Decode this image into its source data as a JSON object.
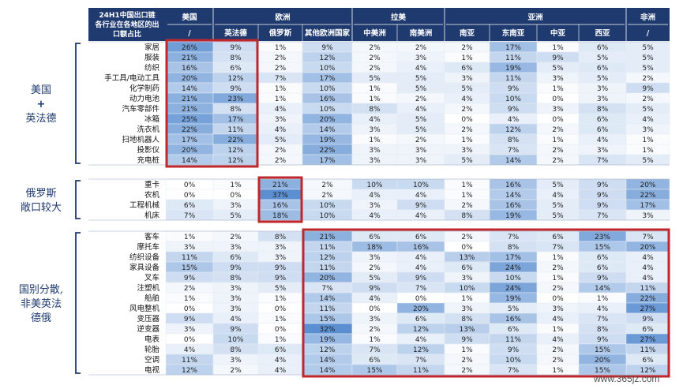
{
  "chart_data": {
    "type": "heatmap",
    "title": "24H1中国出口链各行业在各地区的出口额占比",
    "regions": [
      {
        "name": "美国",
        "subs": [
          "/"
        ]
      },
      {
        "name": "欧洲",
        "subs": [
          "英法德",
          "俄罗斯",
          "其他欧洲国家"
        ]
      },
      {
        "name": "拉美",
        "subs": [
          "中美洲",
          "南美洲"
        ]
      },
      {
        "name": "亚洲",
        "subs": [
          "南亚",
          "东南亚",
          "中亚",
          "西亚"
        ]
      },
      {
        "name": "非洲",
        "subs": [
          "/"
        ]
      }
    ],
    "groups": [
      {
        "label_lines": [
          "美国",
          "+",
          "英法德"
        ],
        "rows": [
          {
            "name": "家居",
            "values": [
              26,
              9,
              1,
              9,
              2,
              2,
              2,
              17,
              1,
              6,
              5
            ]
          },
          {
            "name": "服装",
            "values": [
              21,
              8,
              2,
              12,
              2,
              3,
              1,
              11,
              9,
              5,
              5
            ]
          },
          {
            "name": "纺织",
            "values": [
              16,
              6,
              2,
              10,
              2,
              4,
              6,
              19,
              5,
              6,
              5
            ]
          },
          {
            "name": "手工具/电动工具",
            "values": [
              20,
              12,
              7,
              17,
              5,
              5,
              3,
              11,
              3,
              5,
              2
            ]
          },
          {
            "name": "化学制药",
            "values": [
              14,
              9,
              1,
              10,
              1,
              5,
              5,
              9,
              1,
              3,
              9
            ]
          },
          {
            "name": "动力电池",
            "values": [
              21,
              23,
              1,
              16,
              1,
              2,
              4,
              10,
              0,
              3,
              2
            ]
          },
          {
            "name": "汽车零部件",
            "values": [
              21,
              8,
              4,
              10,
              8,
              4,
              2,
              9,
              3,
              8,
              5
            ]
          },
          {
            "name": "冰箱",
            "values": [
              25,
              17,
              3,
              20,
              4,
              5,
              0,
              4,
              0,
              6,
              4
            ]
          },
          {
            "name": "洗衣机",
            "values": [
              22,
              11,
              4,
              14,
              3,
              5,
              2,
              12,
              2,
              6,
              3
            ]
          },
          {
            "name": "扫地机器人",
            "values": [
              17,
              22,
              5,
              19,
              1,
              2,
              1,
              8,
              1,
              4,
              1
            ]
          },
          {
            "name": "投影仪",
            "values": [
              20,
              12,
              2,
              22,
              3,
              3,
              3,
              7,
              2,
              3,
              1
            ]
          },
          {
            "name": "充电桩",
            "values": [
              14,
              12,
              2,
              17,
              3,
              3,
              5,
              14,
              2,
              7,
              5
            ]
          }
        ]
      },
      {
        "label_lines": [
          "俄罗斯",
          "敞口较大"
        ],
        "rows": [
          {
            "name": "重卡",
            "values": [
              0,
              1,
              21,
              2,
              10,
              10,
              1,
              16,
              5,
              9,
              20
            ]
          },
          {
            "name": "农机",
            "values": [
              0,
              0,
              37,
              2,
              4,
              4,
              1,
              14,
              4,
              9,
              22
            ]
          },
          {
            "name": "工程机械",
            "values": [
              6,
              3,
              16,
              10,
              3,
              9,
              2,
              16,
              5,
              9,
              17
            ]
          },
          {
            "name": "机床",
            "values": [
              7,
              5,
              18,
              10,
              4,
              4,
              8,
              19,
              5,
              7,
              3
            ]
          }
        ]
      },
      {
        "label_lines": [
          "国别分散,",
          "非美英法",
          "德俄"
        ],
        "rows": [
          {
            "name": "客车",
            "values": [
              1,
              2,
              8,
              21,
              6,
              6,
              2,
              7,
              6,
              23,
              7
            ]
          },
          {
            "name": "摩托车",
            "values": [
              3,
              3,
              3,
              11,
              18,
              16,
              0,
              8,
              7,
              15,
              20
            ]
          },
          {
            "name": "纺织设备",
            "values": [
              11,
              6,
              3,
              12,
              3,
              4,
              13,
              17,
              1,
              6,
              4
            ]
          },
          {
            "name": "家具设备",
            "values": [
              15,
              9,
              9,
              11,
              2,
              4,
              6,
              24,
              2,
              6,
              4
            ]
          },
          {
            "name": "叉车",
            "values": [
              9,
              8,
              9,
              20,
              5,
              9,
              3,
              10,
              1,
              9,
              4
            ]
          },
          {
            "name": "注塑机",
            "values": [
              2,
              3,
              5,
              7,
              9,
              7,
              10,
              24,
              2,
              14,
              11
            ]
          },
          {
            "name": "船舶",
            "values": [
              1,
              3,
              1,
              14,
              4,
              0,
              1,
              19,
              0,
              1,
              22
            ]
          },
          {
            "name": "风电整机",
            "values": [
              0,
              3,
              0,
              11,
              0,
              20,
              3,
              5,
              3,
              4,
              27
            ]
          },
          {
            "name": "变压器",
            "values": [
              9,
              4,
              1,
              15,
              3,
              6,
              8,
              16,
              4,
              7,
              9
            ]
          },
          {
            "name": "逆变器",
            "values": [
              3,
              9,
              0,
              32,
              2,
              12,
              13,
              6,
              1,
              8,
              6
            ]
          },
          {
            "name": "电表",
            "values": [
              0,
              10,
              1,
              19,
              1,
              4,
              9,
              11,
              4,
              9,
              27
            ]
          },
          {
            "name": "轮胎",
            "values": [
              4,
              8,
              6,
              12,
              7,
              12,
              1,
              9,
              2,
              15,
              11
            ]
          },
          {
            "name": "空调",
            "values": [
              11,
              3,
              4,
              14,
              6,
              7,
              2,
              10,
              2,
              20,
              6
            ]
          },
          {
            "name": "电视",
            "values": [
              12,
              2,
              4,
              14,
              15,
              11,
              2,
              7,
              1,
              15,
              12
            ]
          }
        ]
      }
    ],
    "value_format": "percent",
    "colors": {
      "header_bg": "#1f3a6e",
      "header_text": "#ffffff",
      "heat_low": "#ffffff",
      "heat_high": "#5b8fd1",
      "highlight_box": "#c0272d",
      "group_bracket": "#1f3a6e"
    },
    "highlight_boxes": [
      {
        "group": 0,
        "columns": [
          "美国",
          "英法德"
        ]
      },
      {
        "group": 1,
        "columns": [
          "俄罗斯"
        ]
      },
      {
        "group": 2,
        "columns": [
          "其他欧洲国家",
          "中美洲",
          "南美洲",
          "南亚",
          "东南亚",
          "中亚",
          "西亚",
          "非洲"
        ]
      }
    ]
  },
  "watermark": "www.365jz.com"
}
